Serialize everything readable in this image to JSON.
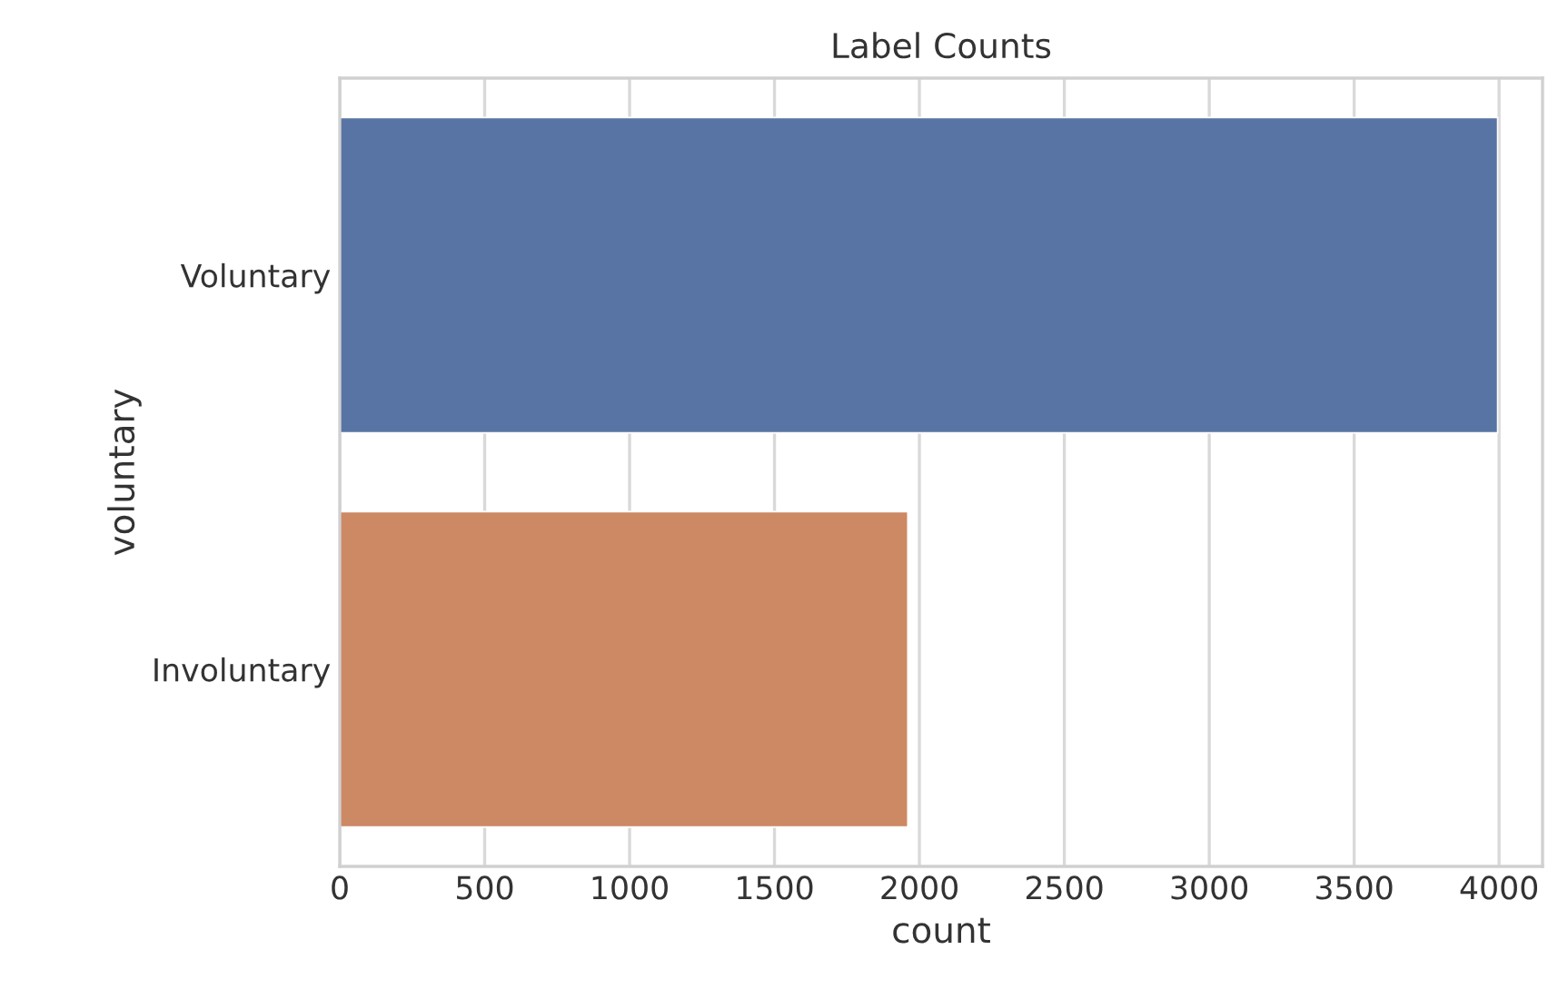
{
  "chart_data": {
    "type": "bar",
    "orientation": "horizontal",
    "title": "Label Counts",
    "xlabel": "count",
    "ylabel": "voluntary",
    "categories": [
      "Voluntary",
      "Involuntary"
    ],
    "values": [
      3995,
      1960
    ],
    "colors": [
      "#5874a4",
      "#cc8963"
    ],
    "xlim": [
      0,
      4150
    ],
    "xticks": [
      0,
      500,
      1000,
      1500,
      2000,
      2500,
      3000,
      3500,
      4000
    ],
    "grid": "x",
    "legend": false
  }
}
